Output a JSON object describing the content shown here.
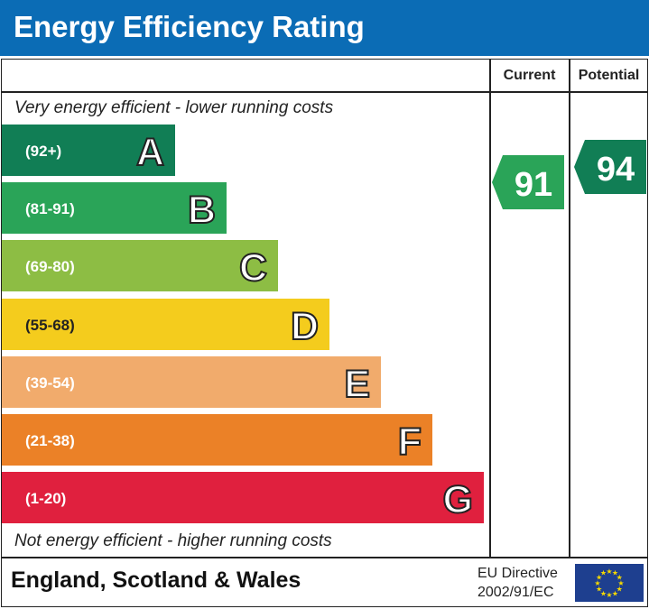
{
  "title": "Energy Efficiency Rating",
  "columns": {
    "current": "Current",
    "potential": "Potential"
  },
  "top_note": "Very energy efficient - lower running costs",
  "bottom_note": "Not energy efficient - higher running costs",
  "footer": {
    "region": "England, Scotland & Wales",
    "directive_line1": "EU Directive",
    "directive_line2": "2002/91/EC"
  },
  "chart_data": {
    "type": "bar",
    "categories": [
      "A",
      "B",
      "C",
      "D",
      "E",
      "F",
      "G"
    ],
    "ranges": [
      "(92+)",
      "(81-91)",
      "(69-80)",
      "(55-68)",
      "(39-54)",
      "(21-38)",
      "(1-20)"
    ],
    "colors": [
      "#117e55",
      "#2aa458",
      "#8dbd44",
      "#f4cc1d",
      "#f1ab6c",
      "#eb8127",
      "#e0203e"
    ],
    "current": {
      "value": 91,
      "band": "B",
      "color": "#2aa458"
    },
    "potential": {
      "value": 94,
      "band": "A",
      "color": "#117e55"
    }
  }
}
